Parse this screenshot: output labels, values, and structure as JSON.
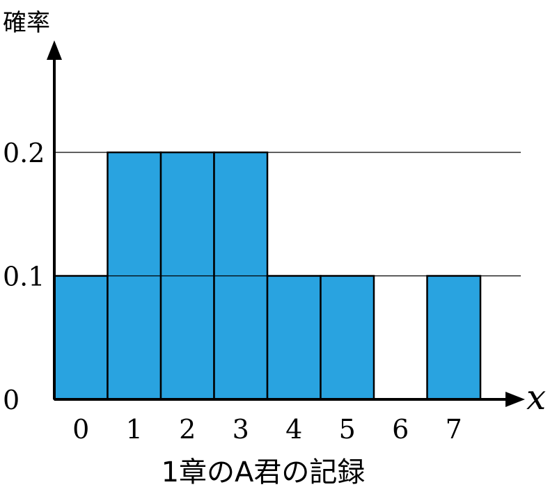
{
  "chart_data": {
    "type": "bar",
    "categories": [
      "0",
      "1",
      "2",
      "3",
      "4",
      "5",
      "6",
      "7"
    ],
    "values": [
      0.1,
      0.2,
      0.2,
      0.2,
      0.1,
      0.1,
      0.0,
      0.1
    ],
    "ylabel": "確率",
    "xlabel": "x",
    "title": "1章のA君の記録",
    "yticks": [
      "0",
      "0.1",
      "0.2"
    ],
    "ylim": [
      0,
      0.2
    ],
    "grid": true,
    "bar_color": "#29a3e0",
    "axis_color": "#000000"
  }
}
